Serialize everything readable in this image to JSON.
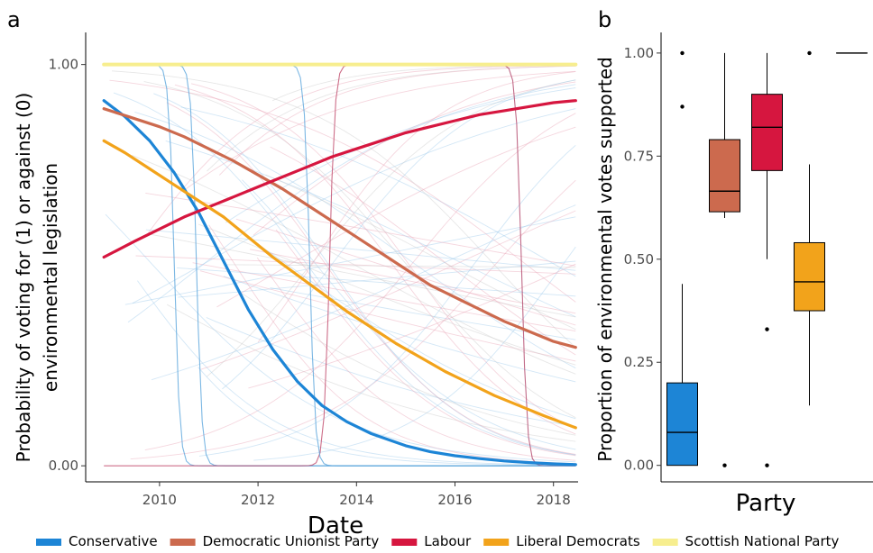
{
  "chart_data": [
    {
      "type": "line",
      "panel_label": "a",
      "xlabel": "Date",
      "ylabel_lines": [
        "Probability of voting for (1) or against (0)",
        "environmental legislation"
      ],
      "xlim": [
        2008.5,
        2018.5
      ],
      "ylim": [
        -0.04,
        1.08
      ],
      "x_ticks": [
        2010,
        2012,
        2014,
        2016,
        2018
      ],
      "x_tick_labels": [
        "2010",
        "2012",
        "2014",
        "2016",
        "2018"
      ],
      "y_ticks": [
        0,
        1
      ],
      "y_tick_labels": [
        "0.00",
        "1.00"
      ],
      "grid": false,
      "series": [
        {
          "name": "Conservative",
          "color": "#1d85d6",
          "x": [
            2008.87,
            2009.3,
            2009.8,
            2010.3,
            2010.8,
            2011.3,
            2011.8,
            2012.3,
            2012.8,
            2013.3,
            2013.8,
            2014.3,
            2015.0,
            2015.5,
            2016.0,
            2016.5,
            2017.0,
            2017.5,
            2018.0,
            2018.45
          ],
          "y": [
            0.91,
            0.87,
            0.81,
            0.73,
            0.63,
            0.51,
            0.39,
            0.29,
            0.21,
            0.15,
            0.11,
            0.08,
            0.05,
            0.035,
            0.025,
            0.018,
            0.012,
            0.008,
            0.005,
            0.003
          ]
        },
        {
          "name": "Democratic Unionist Party",
          "color": "#cc6a4e",
          "x": [
            2008.87,
            2009.5,
            2010.0,
            2010.5,
            2011.0,
            2011.5,
            2012.0,
            2012.5,
            2013.0,
            2013.5,
            2014.0,
            2014.5,
            2015.0,
            2015.5,
            2016.0,
            2016.5,
            2017.0,
            2017.5,
            2018.0,
            2018.45
          ],
          "y": [
            0.89,
            0.865,
            0.845,
            0.82,
            0.79,
            0.76,
            0.725,
            0.69,
            0.65,
            0.61,
            0.57,
            0.53,
            0.49,
            0.45,
            0.42,
            0.39,
            0.36,
            0.335,
            0.31,
            0.295
          ]
        },
        {
          "name": "Labour",
          "color": "#d6163f",
          "x": [
            2008.87,
            2009.5,
            2010.0,
            2010.5,
            2011.0,
            2011.5,
            2012.0,
            2012.5,
            2013.0,
            2013.5,
            2014.0,
            2014.5,
            2015.0,
            2015.5,
            2016.0,
            2016.5,
            2017.0,
            2017.5,
            2018.0,
            2018.45
          ],
          "y": [
            0.52,
            0.56,
            0.59,
            0.62,
            0.645,
            0.67,
            0.695,
            0.72,
            0.745,
            0.77,
            0.79,
            0.81,
            0.83,
            0.845,
            0.86,
            0.875,
            0.885,
            0.895,
            0.905,
            0.91
          ]
        },
        {
          "name": "Liberal Democrats",
          "color": "#f2a31b",
          "x": [
            2008.87,
            2009.3,
            2009.8,
            2010.3,
            2010.8,
            2011.3,
            2011.8,
            2012.3,
            2012.8,
            2013.3,
            2013.8,
            2014.3,
            2014.8,
            2015.3,
            2015.8,
            2016.3,
            2016.8,
            2017.3,
            2017.8,
            2018.45
          ],
          "y": [
            0.81,
            0.78,
            0.74,
            0.7,
            0.66,
            0.62,
            0.57,
            0.52,
            0.475,
            0.43,
            0.385,
            0.345,
            0.305,
            0.27,
            0.235,
            0.205,
            0.175,
            0.15,
            0.125,
            0.095
          ]
        },
        {
          "name": "Scottish National Party",
          "color": "#f7ee8f",
          "x": [
            2008.87,
            2018.45
          ],
          "y": [
            1.0,
            1.0
          ]
        }
      ]
    },
    {
      "type": "box",
      "panel_label": "b",
      "xlabel": "Party",
      "ylabel": "Proportion of environmental votes supported",
      "ylim": [
        -0.04,
        1.05
      ],
      "y_ticks": [
        0,
        0.25,
        0.5,
        0.75,
        1.0
      ],
      "y_tick_labels": [
        "0.00",
        "0.25",
        "0.50",
        "0.75",
        "1.00"
      ],
      "grid": false,
      "boxes": [
        {
          "party": "Conservative",
          "color": "#1d85d6",
          "whisker_low": 0.0,
          "q1": 0.0,
          "median": 0.08,
          "q3": 0.2,
          "whisker_high": 0.44,
          "outliers": [
            0.87,
            1.0
          ]
        },
        {
          "party": "Democratic Unionist Party",
          "color": "#cc6a4e",
          "whisker_low": 0.6,
          "q1": 0.615,
          "median": 0.665,
          "q3": 0.79,
          "whisker_high": 1.0,
          "outliers": [
            0.0
          ]
        },
        {
          "party": "Labour",
          "color": "#d6163f",
          "whisker_low": 0.5,
          "q1": 0.715,
          "median": 0.82,
          "q3": 0.9,
          "whisker_high": 1.0,
          "outliers": [
            0.33,
            0.0
          ]
        },
        {
          "party": "Liberal Democrats",
          "color": "#f2a31b",
          "whisker_low": 0.145,
          "q1": 0.375,
          "median": 0.445,
          "q3": 0.54,
          "whisker_high": 0.73,
          "outliers": [
            1.0
          ]
        },
        {
          "party": "Scottish National Party",
          "color": "#f7ee8f",
          "whisker_low": 1.0,
          "q1": 1.0,
          "median": 1.0,
          "q3": 1.0,
          "whisker_high": 1.0,
          "outliers": []
        }
      ]
    }
  ],
  "legend": [
    {
      "label": "Conservative",
      "color": "#1d85d6"
    },
    {
      "label": "Democratic Unionist Party",
      "color": "#cc6a4e"
    },
    {
      "label": "Labour",
      "color": "#d6163f"
    },
    {
      "label": "Liberal Democrats",
      "color": "#f2a31b"
    },
    {
      "label": "Scottish National Party",
      "color": "#f7ee8f"
    }
  ]
}
